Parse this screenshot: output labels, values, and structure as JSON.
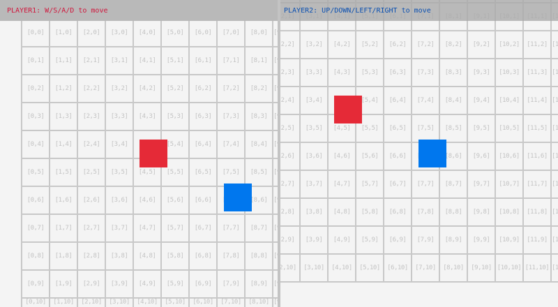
{
  "player1": {
    "hud_text": "PLAYER1: W/S/A/D to move",
    "color": "#e52a37",
    "text_color": "#d0163c",
    "position": {
      "x": 4.2,
      "y": 4.25
    }
  },
  "player2": {
    "hud_text": "PLAYER2: UP/DOWN/LEFT/RIGHT to move",
    "color": "#0077ee",
    "text_color": "#0a4fb0",
    "position": {
      "x": 7.23,
      "y": 5.83
    }
  },
  "grid": {
    "cell_label_format": "[{x},{y}]",
    "line_color": "#c8c8c8",
    "label_color": "#c3c3c3"
  },
  "views": [
    {
      "name": "player1-view",
      "columns": [
        0,
        9
      ],
      "rows": [
        0,
        10
      ]
    },
    {
      "name": "player2-view",
      "columns": [
        2,
        12
      ],
      "rows": [
        0,
        10
      ]
    }
  ]
}
